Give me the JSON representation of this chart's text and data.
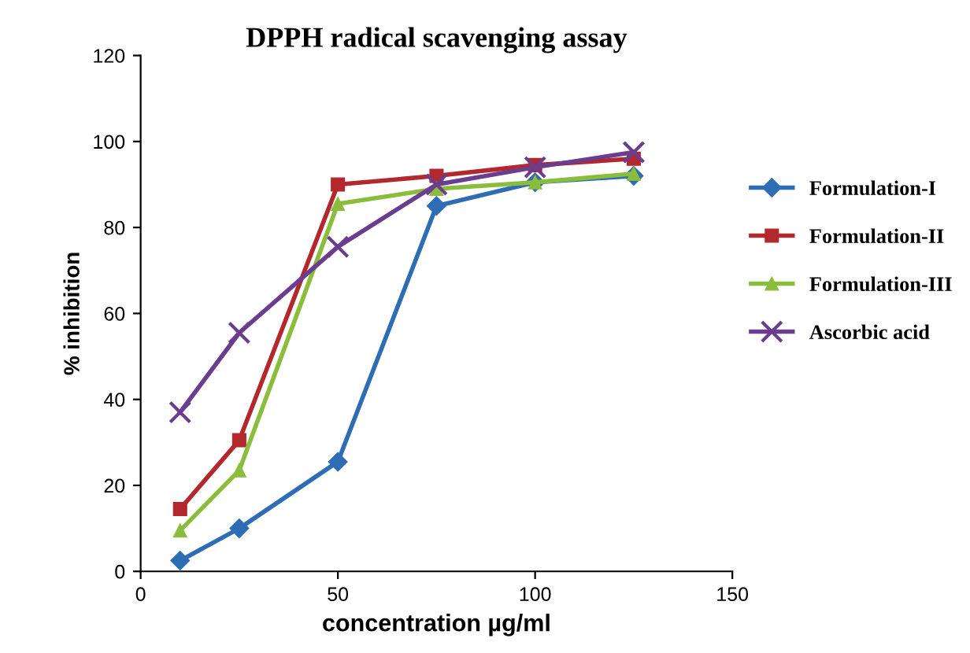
{
  "chart_data": {
    "type": "line",
    "title": "DPPH radical scavenging assay",
    "xlabel": "concentration µg/ml",
    "ylabel": "% inhibition",
    "x": [
      10,
      25,
      50,
      75,
      100,
      125
    ],
    "series": [
      {
        "name": "Formulation-I",
        "color": "#2e6db4",
        "marker": "diamond",
        "values": [
          2.5,
          10,
          25.5,
          85,
          90.5,
          92
        ]
      },
      {
        "name": "Formulation-II",
        "color": "#b3282d",
        "marker": "square",
        "values": [
          14.5,
          30.5,
          90,
          92,
          94.5,
          96
        ]
      },
      {
        "name": "Formulation-III",
        "color": "#8bbd3c",
        "marker": "triangle",
        "values": [
          9.5,
          23.5,
          85.5,
          89,
          90.5,
          92.5
        ]
      },
      {
        "name": "Ascorbic acid",
        "color": "#6a3d8f",
        "marker": "cross",
        "values": [
          37,
          55.5,
          75.5,
          90,
          94,
          97.5
        ]
      }
    ],
    "xlim": [
      0,
      150
    ],
    "xticks": [
      0,
      50,
      100,
      150
    ],
    "ylim": [
      0,
      120
    ],
    "yticks": [
      0,
      20,
      40,
      60,
      80,
      100,
      120
    ],
    "grid": false,
    "legend": "right"
  }
}
